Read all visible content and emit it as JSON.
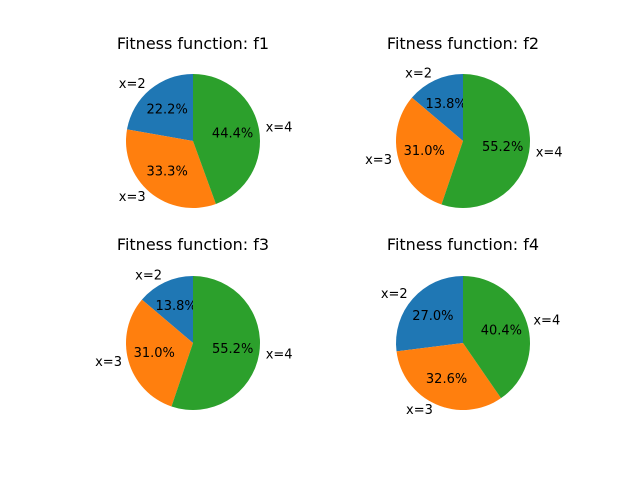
{
  "colors": {
    "x=2": "#1f77b4",
    "x=3": "#ff7f0e",
    "x=4": "#2ca02c"
  },
  "chart_data": [
    {
      "type": "pie",
      "title": "Fitness function: f1",
      "labels": [
        "x=2",
        "x=3",
        "x=4"
      ],
      "values": [
        22.2,
        33.3,
        44.4
      ],
      "value_labels": [
        "22.2%",
        "33.3%",
        "44.4%"
      ]
    },
    {
      "type": "pie",
      "title": "Fitness function: f2",
      "labels": [
        "x=2",
        "x=3",
        "x=4"
      ],
      "values": [
        13.8,
        31.0,
        55.2
      ],
      "value_labels": [
        "13.8%",
        "31.0%",
        "55.2%"
      ]
    },
    {
      "type": "pie",
      "title": "Fitness function: f3",
      "labels": [
        "x=2",
        "x=3",
        "x=4"
      ],
      "values": [
        13.8,
        31.0,
        55.2
      ],
      "value_labels": [
        "13.8%",
        "31.0%",
        "55.2%"
      ]
    },
    {
      "type": "pie",
      "title": "Fitness function: f4",
      "labels": [
        "x=2",
        "x=3",
        "x=4"
      ],
      "values": [
        27.0,
        32.6,
        40.4
      ],
      "value_labels": [
        "27.0%",
        "32.6%",
        "40.4%"
      ]
    }
  ]
}
